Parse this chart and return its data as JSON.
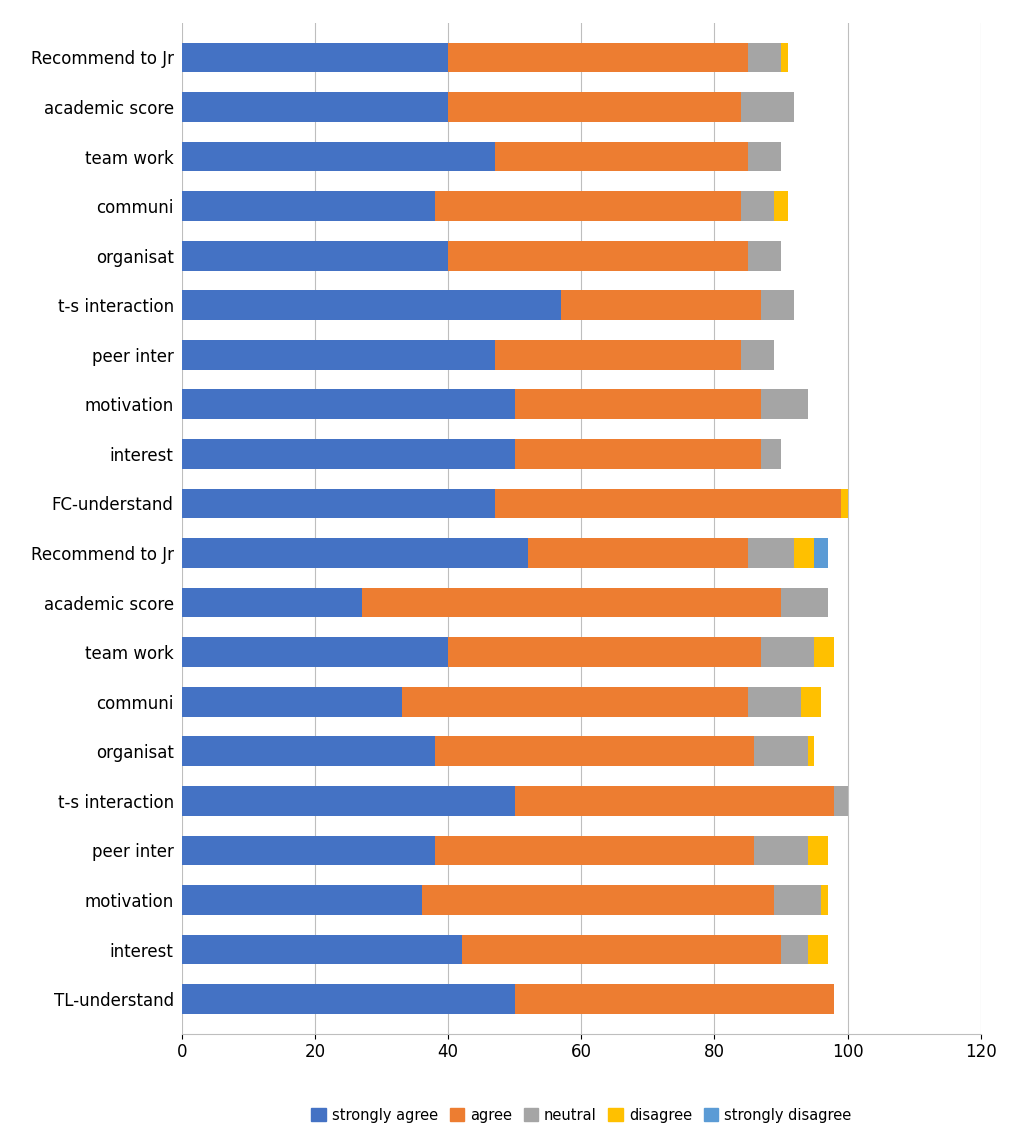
{
  "categories": [
    "Recommend to Jr",
    "academic score",
    "team work",
    "communi",
    "organisat",
    "t-s interaction",
    "peer inter",
    "motivation",
    "interest",
    "FC-understand",
    "Recommend to Jr",
    "academic score",
    "team work",
    "communi",
    "organisat",
    "t-s interaction",
    "peer inter",
    "motivation",
    "interest",
    "TL-understand"
  ],
  "strongly_agree": [
    40,
    40,
    47,
    38,
    40,
    57,
    47,
    50,
    50,
    47,
    52,
    27,
    40,
    33,
    38,
    50,
    38,
    36,
    42,
    50
  ],
  "agree": [
    45,
    44,
    38,
    46,
    45,
    30,
    37,
    37,
    37,
    52,
    33,
    63,
    47,
    52,
    48,
    48,
    48,
    53,
    48,
    48
  ],
  "neutral": [
    5,
    8,
    5,
    5,
    5,
    5,
    5,
    7,
    3,
    0,
    7,
    7,
    8,
    8,
    8,
    2,
    8,
    7,
    4,
    0
  ],
  "disagree": [
    1,
    0,
    0,
    2,
    0,
    0,
    0,
    0,
    0,
    1,
    3,
    0,
    3,
    3,
    1,
    0,
    3,
    1,
    3,
    0
  ],
  "strongly_disagree": [
    0,
    0,
    0,
    0,
    0,
    0,
    0,
    0,
    0,
    0,
    2,
    0,
    0,
    0,
    0,
    0,
    0,
    0,
    0,
    0
  ],
  "colors": {
    "strongly_agree": "#4472C4",
    "agree": "#ED7D31",
    "neutral": "#A5A5A5",
    "disagree": "#FFC000",
    "strongly_disagree": "#5B9BD5"
  },
  "xlim": [
    0,
    120
  ],
  "xticks": [
    0,
    20,
    40,
    60,
    80,
    100,
    120
  ],
  "legend_labels": [
    "strongly agree",
    "agree",
    "neutral",
    "disagree",
    "strongly disagree"
  ],
  "bar_height": 0.6,
  "figsize": [
    10.11,
    11.36
  ],
  "dpi": 100,
  "label_fontsize": 12,
  "tick_fontsize": 12
}
